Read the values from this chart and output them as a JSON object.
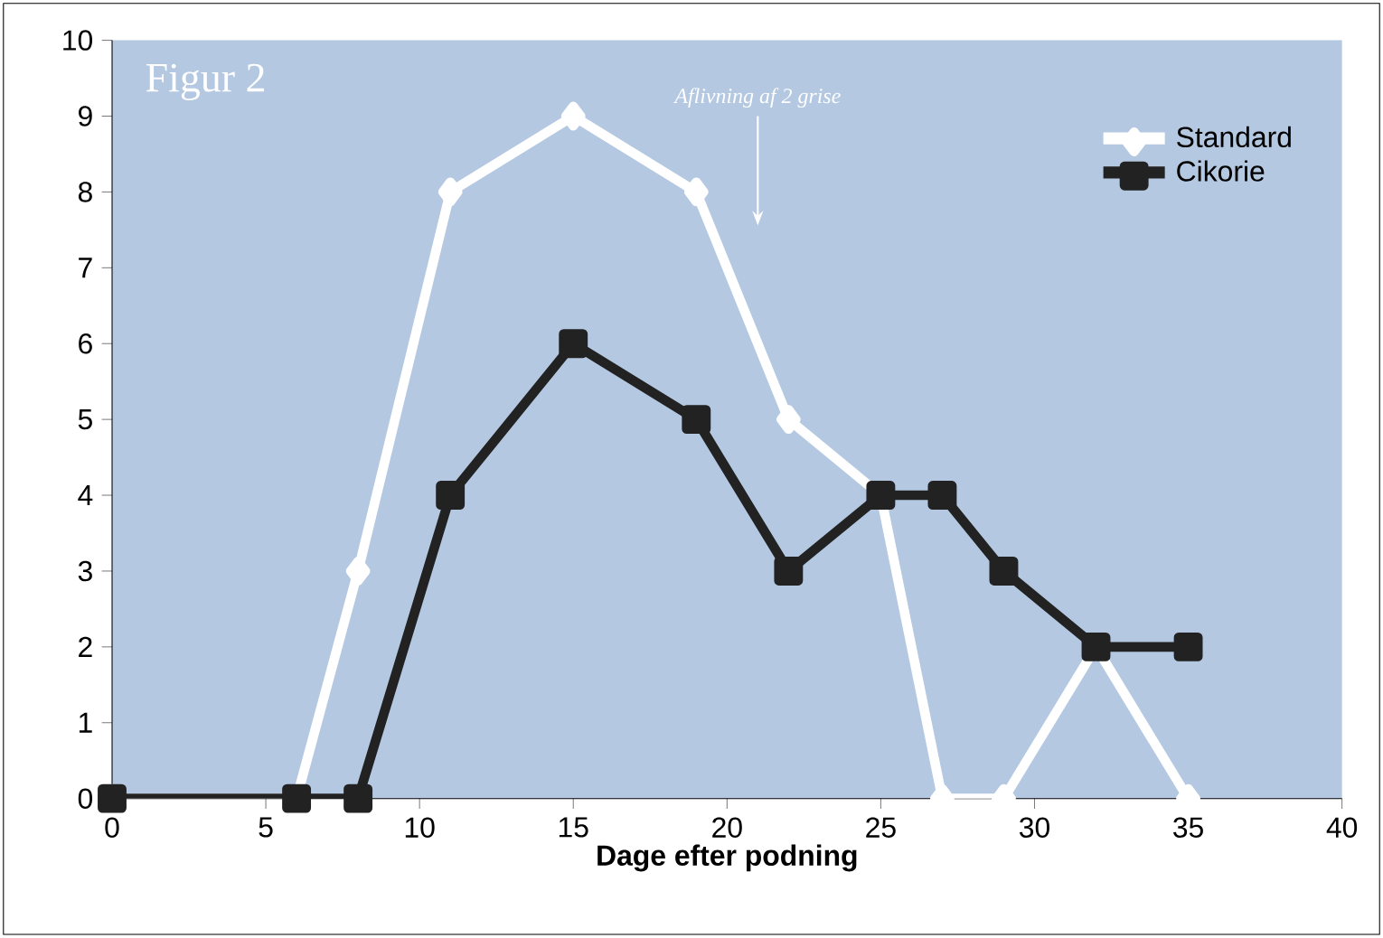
{
  "chart_data": {
    "type": "line",
    "title": "Figur 2",
    "xlabel": "Dage efter podning",
    "xlim": [
      0,
      40
    ],
    "xticks": [
      0,
      5,
      10,
      15,
      20,
      25,
      30,
      35,
      40
    ],
    "ylim": [
      0,
      10
    ],
    "yticks": [
      0,
      1,
      2,
      3,
      4,
      5,
      6,
      7,
      8,
      9,
      10
    ],
    "grid": false,
    "legend": "top right",
    "annotations": [
      "Aflivning af 2 grise"
    ],
    "series": [
      {
        "name": "Standard",
        "color": "#ffffff",
        "marker": "diamond",
        "x": [
          0,
          6,
          8,
          11,
          15,
          19,
          22,
          25,
          27,
          29,
          32,
          35
        ],
        "values": [
          0,
          0,
          3,
          8,
          9,
          8,
          5,
          4,
          0,
          0,
          2,
          0
        ]
      },
      {
        "name": "Cikorie",
        "color": "#222222",
        "marker": "square",
        "x": [
          0,
          6,
          8,
          11,
          15,
          19,
          22,
          25,
          27,
          29,
          32,
          35
        ],
        "values": [
          0,
          0,
          0,
          4,
          6,
          5,
          3,
          4,
          4,
          3,
          2,
          2
        ]
      }
    ]
  }
}
